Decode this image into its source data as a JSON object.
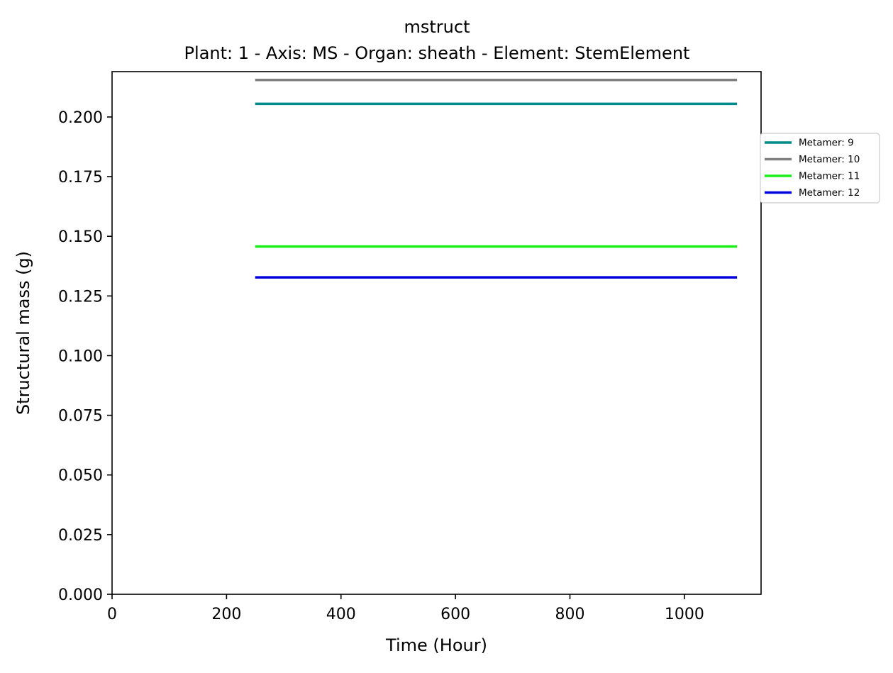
{
  "chart_data": {
    "type": "line",
    "title": "mstruct",
    "subtitle": "Plant: 1 - Axis: MS - Organ: sheath - Element: StemElement",
    "xlabel": "Time (Hour)",
    "ylabel": "Structural mass (g)",
    "xlim": [
      0,
      1134
    ],
    "ylim": [
      0,
      0.219
    ],
    "x_ticks": [
      0,
      200,
      400,
      600,
      800,
      1000
    ],
    "y_ticks": [
      0,
      0.025,
      0.05,
      0.075,
      0.1,
      0.125,
      0.15,
      0.175,
      0.2
    ],
    "x_tick_labels": [
      "0",
      "200",
      "400",
      "600",
      "800",
      "1000"
    ],
    "y_tick_labels": [
      "0.000",
      "0.025",
      "0.050",
      "0.075",
      "0.100",
      "0.125",
      "0.150",
      "0.175",
      "0.200"
    ],
    "grid": false,
    "legend_position": "right, outside plot area",
    "series": [
      {
        "name": "Metamer: 9",
        "color": "#008b8b",
        "x": [
          250,
          1092
        ],
        "y": [
          0.2055,
          0.2055
        ]
      },
      {
        "name": "Metamer: 10",
        "color": "#808080",
        "x": [
          250,
          1092
        ],
        "y": [
          0.2155,
          0.2155
        ]
      },
      {
        "name": "Metamer: 11",
        "color": "#18f018",
        "x": [
          250,
          1092
        ],
        "y": [
          0.1457,
          0.1457
        ]
      },
      {
        "name": "Metamer: 12",
        "color": "#0000dd",
        "x": [
          250,
          1092
        ],
        "y": [
          0.1328,
          0.1328
        ]
      }
    ]
  }
}
